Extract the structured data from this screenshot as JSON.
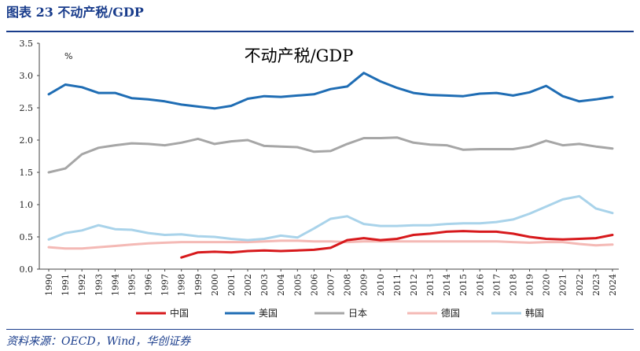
{
  "header": {
    "figure_title": "图表 23   不动产税/GDP",
    "source": "资料来源：OECD，Wind，华创证券"
  },
  "chart_data": {
    "type": "line",
    "title": "不动产税/GDP",
    "unit_label": "%",
    "xlabel": "",
    "ylabel": "",
    "ylim": [
      0,
      3.5
    ],
    "yticks": [
      "0.0",
      "0.5",
      "1.0",
      "1.5",
      "2.0",
      "2.5",
      "3.0",
      "3.5"
    ],
    "grid": false,
    "legend_position": "bottom",
    "categories": [
      "1990",
      "1991",
      "1992",
      "1993",
      "1994",
      "1995",
      "1996",
      "1997",
      "1998",
      "1999",
      "2000",
      "2001",
      "2002",
      "2003",
      "2004",
      "2005",
      "2006",
      "2007",
      "2008",
      "2009",
      "2010",
      "2011",
      "2012",
      "2013",
      "2014",
      "2015",
      "2016",
      "2017",
      "2018",
      "2019",
      "2020",
      "2021",
      "2022",
      "2023",
      "2024"
    ],
    "series": [
      {
        "name": "中国",
        "color": "#d7191c",
        "values": [
          null,
          null,
          null,
          null,
          null,
          null,
          null,
          null,
          0.18,
          0.26,
          0.27,
          0.26,
          0.28,
          0.29,
          0.28,
          0.29,
          0.3,
          0.33,
          0.45,
          0.48,
          0.45,
          0.47,
          0.53,
          0.55,
          0.58,
          0.59,
          0.58,
          0.58,
          0.55,
          0.5,
          0.47,
          0.46,
          0.47,
          0.48,
          0.53
        ]
      },
      {
        "name": "美国",
        "color": "#1f6db4",
        "values": [
          2.71,
          2.86,
          2.82,
          2.73,
          2.73,
          2.65,
          2.63,
          2.6,
          2.55,
          2.52,
          2.49,
          2.53,
          2.64,
          2.68,
          2.67,
          2.69,
          2.71,
          2.79,
          2.83,
          3.04,
          2.91,
          2.81,
          2.73,
          2.7,
          2.69,
          2.68,
          2.72,
          2.73,
          2.69,
          2.74,
          2.84,
          2.68,
          2.6,
          2.63,
          2.67
        ]
      },
      {
        "name": "日本",
        "color": "#a6a6a6",
        "values": [
          1.5,
          1.56,
          1.78,
          1.88,
          1.92,
          1.95,
          1.94,
          1.92,
          1.96,
          2.02,
          1.94,
          1.98,
          2.0,
          1.91,
          1.9,
          1.89,
          1.82,
          1.83,
          1.94,
          2.03,
          2.03,
          2.04,
          1.96,
          1.93,
          1.92,
          1.85,
          1.86,
          1.86,
          1.86,
          1.9,
          1.99,
          1.92,
          1.94,
          1.9,
          1.87
        ]
      },
      {
        "name": "德国",
        "color": "#f4b9b5",
        "values": [
          0.34,
          0.32,
          0.32,
          0.34,
          0.36,
          0.38,
          0.4,
          0.41,
          0.42,
          0.42,
          0.42,
          0.42,
          0.42,
          0.43,
          0.44,
          0.44,
          0.43,
          0.43,
          0.42,
          0.43,
          0.43,
          0.43,
          0.43,
          0.43,
          0.43,
          0.43,
          0.43,
          0.43,
          0.42,
          0.41,
          0.42,
          0.42,
          0.39,
          0.37,
          0.38
        ]
      },
      {
        "name": "韩国",
        "color": "#a9d3ea",
        "values": [
          0.46,
          0.56,
          0.6,
          0.68,
          0.62,
          0.61,
          0.56,
          0.53,
          0.54,
          0.51,
          0.5,
          0.47,
          0.45,
          0.47,
          0.52,
          0.49,
          0.63,
          0.78,
          0.82,
          0.7,
          0.67,
          0.67,
          0.68,
          0.68,
          0.7,
          0.71,
          0.71,
          0.73,
          0.77,
          0.86,
          0.97,
          1.08,
          1.13,
          0.94,
          0.87
        ]
      }
    ]
  }
}
